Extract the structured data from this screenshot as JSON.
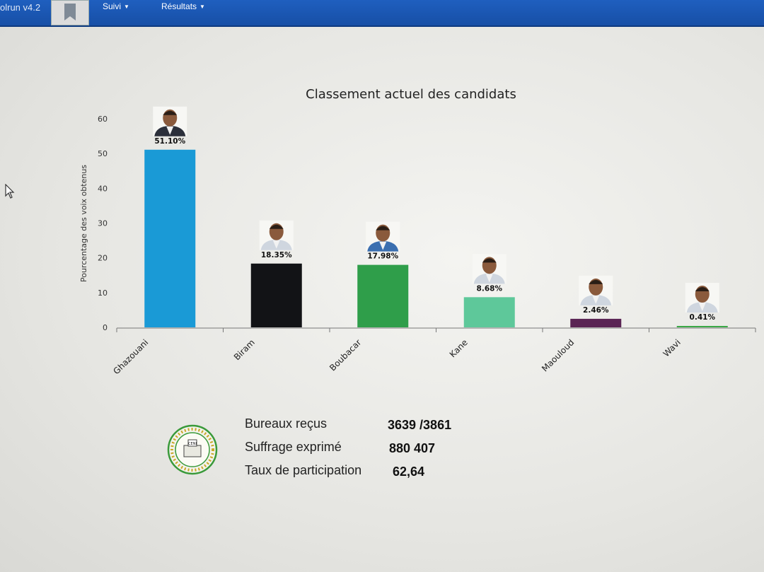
{
  "app": {
    "brand": "olrun v4.2"
  },
  "nav": {
    "items": [
      {
        "label": "Suivi"
      },
      {
        "label": "Résultats"
      }
    ]
  },
  "colors": {
    "navbar": "#1f5fbf",
    "background": "#ebebe8"
  },
  "chart_data": {
    "type": "bar",
    "title": "Classement actuel des candidats",
    "ylabel": "Pourcentage des voix obtenus",
    "xlabel": "",
    "ylim": [
      0,
      60
    ],
    "yticks": [
      0,
      10,
      20,
      30,
      40,
      50,
      60
    ],
    "grid": false,
    "categories": [
      "Ghazouani",
      "Biram",
      "Boubacar",
      "Kane",
      "Maouloud",
      "Wavi"
    ],
    "values": [
      51.1,
      18.35,
      17.98,
      8.68,
      2.46,
      0.41
    ],
    "labels": [
      "51.10%",
      "18.35%",
      "17.98%",
      "8.68%",
      "2.46%",
      "0.41%"
    ],
    "colors": [
      "#1a9ad6",
      "#121316",
      "#2f9e4a",
      "#5ec89a",
      "#5a2454",
      "#3aa845"
    ],
    "photos": [
      "candidate-photo",
      "candidate-photo",
      "candidate-photo",
      "candidate-photo",
      "candidate-photo",
      "candidate-photo"
    ]
  },
  "stats": {
    "bureaux_label": "Bureaux reçus",
    "bureaux_value": "3639 /3861",
    "suffrage_label": "Suffrage exprimé",
    "suffrage_value": "880 407",
    "taux_label": "Taux de participation",
    "taux_value": "62,64"
  },
  "seal": {
    "text": "CENI"
  }
}
